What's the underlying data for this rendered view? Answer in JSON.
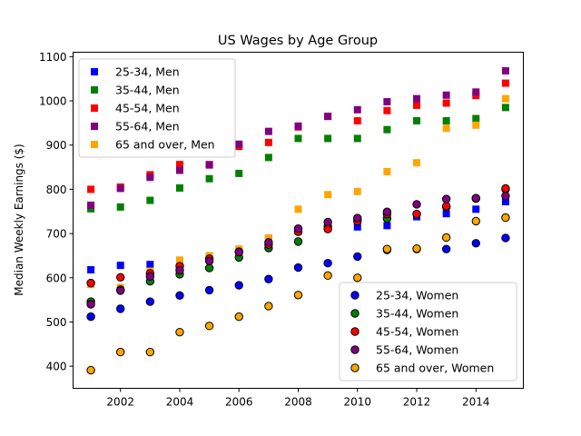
{
  "chart_data": {
    "type": "scatter",
    "title": "US Wages by Age Group",
    "xlabel": "",
    "ylabel": "Median Weekly Earnings ($)",
    "xlim": [
      2000.4,
      2015.6
    ],
    "ylim": [
      350,
      1110
    ],
    "xticks": [
      2002,
      2004,
      2006,
      2008,
      2010,
      2012,
      2014
    ],
    "yticks": [
      400,
      500,
      600,
      700,
      800,
      900,
      1000,
      1100
    ],
    "xtick_labels": [
      "2002",
      "2004",
      "2006",
      "2008",
      "2010",
      "2012",
      "2014"
    ],
    "ytick_labels": [
      "400",
      "500",
      "600",
      "700",
      "800",
      "900",
      "1000",
      "1100"
    ],
    "x": [
      2001,
      2002,
      2003,
      2004,
      2005,
      2006,
      2007,
      2008,
      2009,
      2010,
      2011,
      2012,
      2013,
      2014,
      2015
    ],
    "legend_men_position": "upper-left",
    "legend_women_position": "lower-right",
    "series": [
      {
        "name": "25-34, Men",
        "group": "men",
        "marker": "square",
        "color": "#0000ff",
        "values": [
          618,
          628,
          630,
          636,
          645,
          660,
          688,
          705,
          720,
          715,
          718,
          738,
          745,
          755,
          772
        ]
      },
      {
        "name": "35-44, Men",
        "group": "men",
        "marker": "square",
        "color": "#008000",
        "values": [
          756,
          760,
          775,
          803,
          824,
          836,
          872,
          915,
          915,
          915,
          935,
          955,
          955,
          960,
          985
        ]
      },
      {
        "name": "45-54, Men",
        "group": "men",
        "marker": "square",
        "color": "#ff0000",
        "values": [
          800,
          805,
          833,
          856,
          856,
          897,
          906,
          941,
          965,
          955,
          978,
          990,
          995,
          1012,
          1040
        ]
      },
      {
        "name": "55-64, Men",
        "group": "men",
        "marker": "square",
        "color": "#800080",
        "values": [
          764,
          802,
          827,
          843,
          855,
          902,
          931,
          943,
          965,
          980,
          998,
          1005,
          1013,
          1020,
          1068
        ]
      },
      {
        "name": "65 and over, Men",
        "group": "men",
        "marker": "square",
        "color": "#ffa500",
        "values": [
          585,
          578,
          615,
          640,
          650,
          665,
          690,
          755,
          788,
          795,
          840,
          860,
          938,
          945,
          1005
        ]
      },
      {
        "name": "25-34, Women",
        "group": "women",
        "marker": "circle",
        "color": "#0000ff",
        "values": [
          512,
          530,
          546,
          560,
          572,
          583,
          597,
          623,
          633,
          648,
          663,
          665,
          665,
          678,
          690
        ]
      },
      {
        "name": "35-44, Women",
        "group": "women",
        "marker": "circle",
        "color": "#008000",
        "values": [
          546,
          573,
          592,
          608,
          622,
          646,
          667,
          682,
          716,
          730,
          734,
          744,
          760,
          780,
          800
        ]
      },
      {
        "name": "45-54, Women",
        "group": "women",
        "marker": "circle",
        "color": "#ff0000",
        "values": [
          588,
          601,
          610,
          626,
          643,
          659,
          675,
          704,
          710,
          728,
          744,
          744,
          762,
          779,
          802
        ]
      },
      {
        "name": "55-64, Women",
        "group": "women",
        "marker": "circle",
        "color": "#800080",
        "values": [
          540,
          571,
          603,
          617,
          638,
          658,
          680,
          711,
          726,
          735,
          749,
          766,
          778,
          780,
          785
        ]
      },
      {
        "name": "65 and over, Women",
        "group": "women",
        "marker": "circle",
        "color": "#ffa500",
        "values": [
          391,
          432,
          432,
          477,
          491,
          512,
          536,
          561,
          605,
          600,
          665,
          666,
          691,
          728,
          736
        ]
      }
    ]
  }
}
